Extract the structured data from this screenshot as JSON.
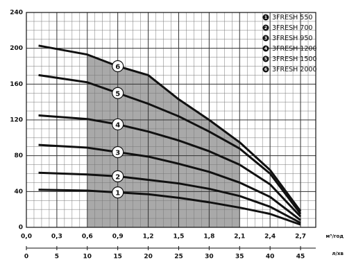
{
  "chart_data": {
    "type": "line",
    "x": [
      0.12,
      0.6,
      0.9,
      1.2,
      1.5,
      1.8,
      2.1,
      2.4,
      2.7
    ],
    "series": [
      {
        "name": "3FRESH 550",
        "label": "1",
        "color": "#111111",
        "values": [
          42,
          41,
          39,
          37,
          33,
          28,
          22,
          15,
          3
        ]
      },
      {
        "name": "3FRESH 700",
        "label": "2",
        "color": "#111111",
        "values": [
          61,
          59,
          57,
          53,
          49,
          43,
          35,
          23,
          5
        ]
      },
      {
        "name": "3FRESH 950",
        "label": "3",
        "color": "#111111",
        "values": [
          92,
          89,
          84,
          79,
          71,
          62,
          50,
          34,
          8
        ]
      },
      {
        "name": "3FRESH 1200",
        "label": "4",
        "color": "#111111",
        "values": [
          125,
          121,
          115,
          107,
          97,
          85,
          70,
          48,
          12
        ]
      },
      {
        "name": "3FRESH 1500",
        "label": "5",
        "color": "#111111",
        "values": [
          170,
          162,
          150,
          138,
          124,
          107,
          88,
          60,
          15
        ]
      },
      {
        "name": "3FRESH 2000",
        "label": "6",
        "color": "#111111",
        "values": [
          203,
          193,
          180,
          170,
          143,
          120,
          95,
          64,
          18
        ]
      }
    ],
    "marker_x": 0.9,
    "shaded_range": [
      0.6,
      2.1
    ],
    "shade_color": "#a9a9a9",
    "xlim": [
      0,
      2.85
    ],
    "ylim": [
      0,
      240
    ],
    "xticks": [
      {
        "value": 0,
        "label": "0,0"
      },
      {
        "value": 0.3,
        "label": "0,3"
      },
      {
        "value": 0.6,
        "label": "0,6"
      },
      {
        "value": 0.9,
        "label": "0,9"
      },
      {
        "value": 1.2,
        "label": "1,2"
      },
      {
        "value": 1.5,
        "label": "1,5"
      },
      {
        "value": 1.8,
        "label": "1,8"
      },
      {
        "value": 2.1,
        "label": "2,1"
      },
      {
        "value": 2.4,
        "label": "2,4"
      },
      {
        "value": 2.7,
        "label": "2,7"
      }
    ],
    "yticks": [
      0,
      40,
      80,
      120,
      160,
      200,
      240
    ],
    "xlabel": "м³/год",
    "x2lim": [
      0,
      47.5
    ],
    "x2ticks": [
      0,
      5,
      10,
      15,
      20,
      25,
      30,
      35,
      40,
      45
    ],
    "x2label": "л/хв",
    "grid": true
  }
}
